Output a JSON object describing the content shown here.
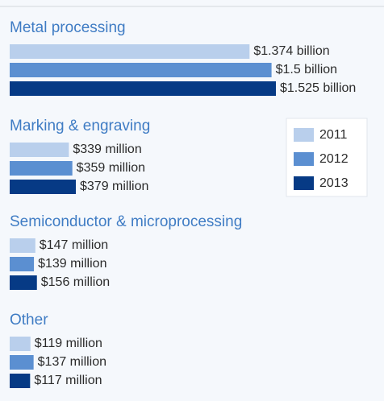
{
  "chart_data": {
    "type": "bar",
    "orientation": "horizontal",
    "categories": [
      "Metal processing",
      "Marking & engraving",
      "Semiconductor & microprocessing",
      "Other"
    ],
    "series": [
      {
        "name": "2011",
        "color": "#b9cfec",
        "values": [
          1374,
          339,
          147,
          119
        ],
        "value_labels": [
          "$1.374 billion",
          "$339 million",
          "$147 million",
          "$119 million"
        ]
      },
      {
        "name": "2012",
        "color": "#5b8fd1",
        "values": [
          1500,
          359,
          139,
          137
        ],
        "value_labels": [
          "$1.5 billion",
          "$359 million",
          "$139 million",
          "$137 million"
        ]
      },
      {
        "name": "2013",
        "color": "#063a85",
        "values": [
          1525,
          379,
          156,
          117
        ],
        "value_labels": [
          "$1.525 billion",
          "$379 million",
          "$156 million",
          "$117 million"
        ]
      }
    ],
    "legend": "right"
  }
}
